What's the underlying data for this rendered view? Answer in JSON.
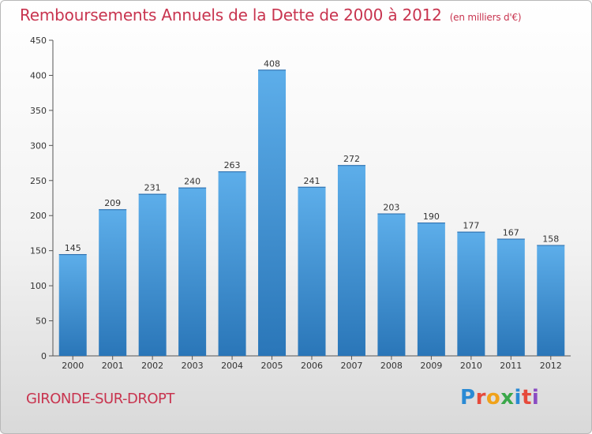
{
  "header": {
    "title": "Remboursements Annuels de la Dette de 2000 à 2012",
    "unit": "(en milliers d'€)"
  },
  "footer": {
    "city": "GIRONDE-SUR-DROPT",
    "brand": "Proxiti"
  },
  "colors": {
    "title": "#c8344f",
    "bar_light": "#5daeea",
    "bar_dark": "#2a76b8"
  },
  "chart_data": {
    "type": "bar",
    "title": "Remboursements Annuels de la Dette de 2000 à 2012",
    "categories": [
      "2000",
      "2001",
      "2002",
      "2003",
      "2004",
      "2005",
      "2006",
      "2007",
      "2008",
      "2009",
      "2010",
      "2011",
      "2012"
    ],
    "values": [
      145,
      209,
      231,
      240,
      263,
      408,
      241,
      272,
      203,
      190,
      177,
      167,
      158
    ],
    "ylim": [
      0,
      450
    ],
    "yticks": [
      0,
      50,
      100,
      150,
      200,
      250,
      300,
      350,
      400,
      450
    ],
    "grid": false
  }
}
